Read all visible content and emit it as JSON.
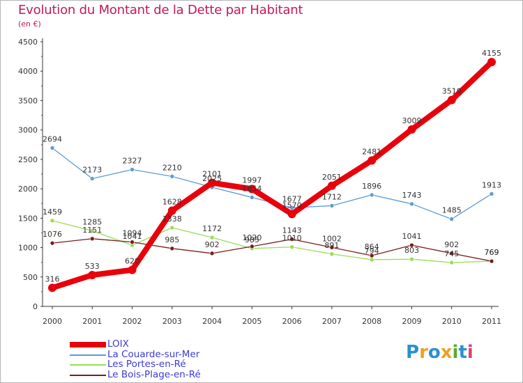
{
  "title": "Evolution du Montant de la Dette par Habitant",
  "subtitle": "(en €)",
  "logo": {
    "letters": [
      "P",
      "r",
      "o",
      "x",
      "i",
      "t",
      "i"
    ],
    "colors": [
      "#2a8fd4",
      "#f0a020",
      "#2a8fd4",
      "#f0a020",
      "#5aaa2e",
      "#2a8fd4",
      "#e04070"
    ]
  },
  "chart_data": {
    "type": "line",
    "x": [
      "2000",
      "2001",
      "2002",
      "2003",
      "2004",
      "2005",
      "2006",
      "2007",
      "2008",
      "2009",
      "2010",
      "2011"
    ],
    "ylim": [
      0,
      4500
    ],
    "yticks": [
      "0",
      "500",
      "1000",
      "1500",
      "2000",
      "2500",
      "3000",
      "3500",
      "4000",
      "4500"
    ],
    "grid": false,
    "legend_position": "bottom-left",
    "series": [
      {
        "name": "LOIX",
        "color": "#e8000b",
        "values": [
          316,
          533,
          620,
          1628,
          2101,
          1997,
          1570,
          2051,
          2481,
          3009,
          3510,
          4155
        ],
        "labels": [
          "316",
          "533",
          "620",
          "1628",
          "2101",
          "1997",
          "1570",
          "2051",
          "2481",
          "3009",
          "3510",
          "4155"
        ]
      },
      {
        "name": "La Couarde-sur-Mer",
        "color": "#5b9bd5",
        "values": [
          2694,
          2173,
          2327,
          2210,
          2025,
          1854,
          1677,
          1712,
          1896,
          1743,
          1485,
          1913
        ],
        "labels": [
          "2694",
          "2173",
          "2327",
          "2210",
          "2025",
          "1854",
          "1677",
          "1712",
          "1896",
          "1743",
          "1485",
          "1913"
        ]
      },
      {
        "name": "Les Portes-en-Ré",
        "color": "#99dd55",
        "values": [
          1459,
          1285,
          1041,
          1338,
          1172,
          985,
          1010,
          891,
          794,
          803,
          745,
          769
        ],
        "labels": [
          "1459",
          "1285",
          "1041",
          "1338",
          "1172",
          "985",
          "1010",
          "891",
          "794",
          "803",
          "745",
          "769"
        ]
      },
      {
        "name": "Le Bois-Plage-en-Ré",
        "color": "#7b1c1c",
        "values": [
          1076,
          1151,
          1094,
          985,
          902,
          1020,
          1143,
          1002,
          864,
          1041,
          902,
          769
        ],
        "labels": [
          "1076",
          "1151",
          "1094",
          "985",
          "902",
          "1020",
          "1143",
          "1002",
          "864",
          "1041",
          "902",
          "769"
        ]
      }
    ]
  }
}
